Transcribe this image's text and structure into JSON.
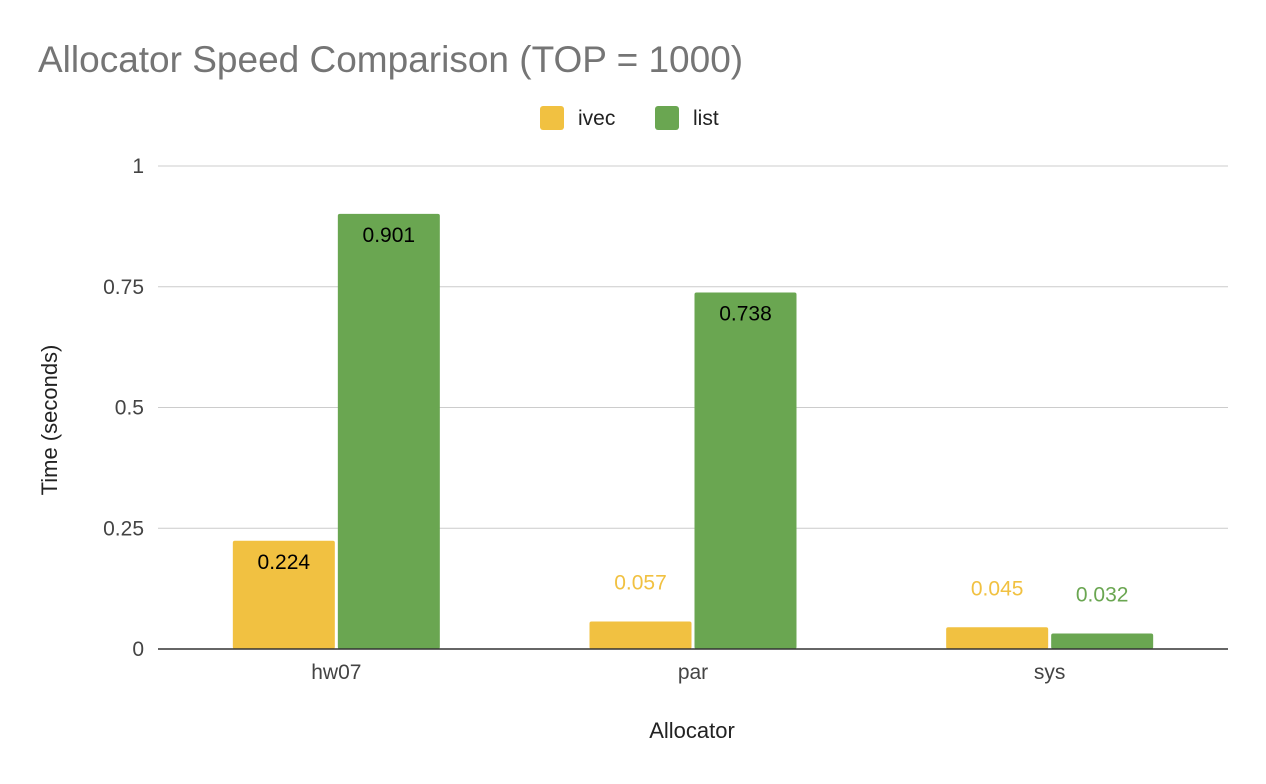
{
  "chart_data": {
    "type": "bar",
    "title": "Allocator Speed Comparison (TOP = 1000)",
    "xlabel": "Allocator",
    "ylabel": "Time (seconds)",
    "categories": [
      "hw07",
      "par",
      "sys"
    ],
    "series": [
      {
        "name": "ivec",
        "values": [
          0.224,
          0.057,
          0.045
        ],
        "color": "#F1C141"
      },
      {
        "name": "list",
        "values": [
          0.901,
          0.738,
          0.032
        ],
        "color": "#6AA651"
      }
    ],
    "data_labels": [
      [
        "0.224",
        "0.057",
        "0.045"
      ],
      [
        "0.901",
        "0.738",
        "0.032"
      ]
    ],
    "ylim": [
      0,
      1
    ],
    "yticks": [
      0,
      0.25,
      0.5,
      0.75,
      1
    ],
    "ytick_labels": [
      "0",
      "0.25",
      "0.5",
      "0.75",
      "1"
    ],
    "grid": true,
    "legend": "top-center"
  }
}
